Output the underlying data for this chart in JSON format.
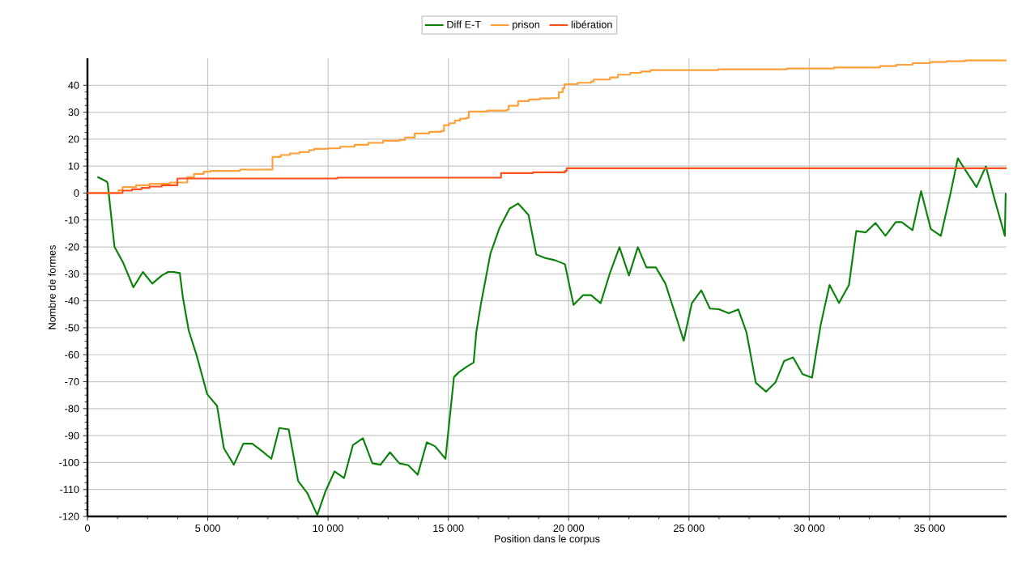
{
  "chart_data": {
    "type": "line",
    "xlabel": "Position dans le corpus",
    "ylabel": "Nombre de formes",
    "xlim": [
      0,
      38200
    ],
    "ylim": [
      -120,
      50
    ],
    "xticks": [
      0,
      {
        "value": 5000,
        "label": "5 000"
      },
      {
        "value": 10000,
        "label": "10 000"
      },
      {
        "value": 15000,
        "label": "15 000"
      },
      {
        "value": 20000,
        "label": "20 000"
      },
      {
        "value": 25000,
        "label": "25 000"
      },
      {
        "value": 30000,
        "label": "30 000"
      },
      {
        "value": 35000,
        "label": "35 000"
      }
    ],
    "yticks": [
      -120,
      -110,
      -100,
      -90,
      -80,
      -70,
      -60,
      -50,
      -40,
      -30,
      -20,
      -10,
      0,
      10,
      20,
      30,
      40
    ],
    "grid": true,
    "legend": "top",
    "series": [
      {
        "name": "Diff E-T",
        "color": "#0a820a",
        "x": [
          417,
          808,
          842,
          1124,
          1481,
          1909,
          2303,
          2694,
          3088,
          3347,
          3593,
          3838,
          3963,
          4209,
          4546,
          4973,
          5387,
          5670,
          6084,
          6478,
          6848,
          7219,
          7643,
          7970,
          8364,
          8754,
          9148,
          9552,
          9878,
          10269,
          10663,
          11034,
          11448,
          11842,
          12179,
          12573,
          12963,
          13334,
          13727,
          14104,
          14440,
          14880,
          15232,
          15434,
          15771,
          16050,
          16162,
          16364,
          16556,
          16748,
          17118,
          17542,
          17902,
          18330,
          18653,
          19024,
          19418,
          19845,
          20202,
          20596,
          20933,
          21327,
          21718,
          22111,
          22505,
          22875,
          23232,
          23626,
          24020,
          24411,
          24781,
          25118,
          25512,
          25872,
          26243,
          26657,
          27051,
          27388,
          27778,
          28206,
          28599,
          28956,
          29327,
          29721,
          30115,
          30472,
          30842,
          31236,
          31650,
          31953,
          32347,
          32751,
          33165,
          33593,
          33839,
          34289,
          34646,
          35050,
          35467,
          35858,
          36175,
          36532,
          36949,
          37340,
          37711,
          38128,
          38162
        ],
        "values": [
          6,
          4.2,
          3.4,
          -20,
          -25.8,
          -35,
          -29.3,
          -33.6,
          -30.6,
          -29.3,
          -29.3,
          -29.7,
          -38.6,
          -51,
          -60.5,
          -74.6,
          -79,
          -94.7,
          -100.8,
          -93,
          -93,
          -95.5,
          -98.6,
          -87.2,
          -87.7,
          -106.8,
          -111.5,
          -119.5,
          -111,
          -103.3,
          -105.8,
          -93.5,
          -91,
          -100.3,
          -100.8,
          -96.2,
          -100.3,
          -101,
          -104.5,
          -92.5,
          -93.9,
          -98.6,
          -68.3,
          -66.5,
          -64.4,
          -62.9,
          -51.6,
          -40.6,
          -31.6,
          -22.5,
          -13.1,
          -5.8,
          -3.9,
          -8.1,
          -22.8,
          -24.1,
          -24.9,
          -26.4,
          -41.5,
          -37.9,
          -37.9,
          -40.9,
          -29.6,
          -20.1,
          -30.6,
          -20.1,
          -27.6,
          -27.6,
          -33.6,
          -44.4,
          -54.8,
          -40.9,
          -36.1,
          -42.9,
          -43.1,
          -44.6,
          -43.2,
          -51.6,
          -70.4,
          -73.7,
          -70.2,
          -62.3,
          -61,
          -67.2,
          -68.5,
          -49,
          -34.1,
          -40.8,
          -34.1,
          -14.1,
          -14.6,
          -11.1,
          -15.9,
          -10.8,
          -10.8,
          -13.8,
          0.7,
          -13.3,
          -15.9,
          -0.6,
          12.9,
          7.9,
          2.2,
          9.9,
          -2.6,
          -15.9,
          0
        ]
      },
      {
        "name": "prison",
        "color": "#ffa038",
        "type": "step",
        "x": [
          0,
          1290,
          1460,
          2020,
          2580,
          3420,
          4150,
          4430,
          4830,
          5110,
          6340,
          7690,
          8030,
          8420,
          8810,
          9210,
          9430,
          9990,
          10500,
          11110,
          11670,
          12290,
          12960,
          13190,
          13600,
          14200,
          14700,
          14820,
          15040,
          15270,
          15490,
          15750,
          15850,
          16610,
          17430,
          17510,
          17900,
          18350,
          18800,
          19250,
          19590,
          19750,
          19830,
          20370,
          20930,
          21040,
          21720,
          22050,
          22560,
          23010,
          23400,
          26210,
          29070,
          31030,
          32940,
          33620,
          34290,
          35020,
          35690,
          36480,
          38200
        ],
        "values": [
          0,
          1,
          2.2,
          2.9,
          3.4,
          3.9,
          5.9,
          7.1,
          7.9,
          8.2,
          8.7,
          13.4,
          14.1,
          14.7,
          15.2,
          15.9,
          16.4,
          16.6,
          17.2,
          17.9,
          18.6,
          19.4,
          19.7,
          20.6,
          22.1,
          22.7,
          23,
          25.2,
          25.9,
          26.9,
          27.6,
          27.9,
          30.2,
          30.6,
          30.9,
          32.4,
          34.1,
          34.7,
          35.1,
          35.2,
          37.4,
          38.9,
          40.4,
          40.9,
          41.4,
          42.1,
          42.9,
          43.9,
          44.6,
          45.1,
          45.6,
          45.9,
          46.2,
          46.6,
          47.1,
          47.6,
          48.2,
          48.6,
          48.9,
          49.2,
          49.2
        ]
      },
      {
        "name": "libération",
        "color": "#ff4e1c",
        "type": "step",
        "x": [
          0,
          1460,
          1850,
          2250,
          2580,
          3090,
          3740,
          10380,
          17190,
          18520,
          19850,
          19920,
          38200
        ],
        "values": [
          0,
          0.9,
          1.4,
          1.9,
          2.4,
          2.9,
          5.4,
          5.7,
          7.4,
          7.7,
          8.2,
          9.2,
          9.2
        ]
      }
    ]
  }
}
